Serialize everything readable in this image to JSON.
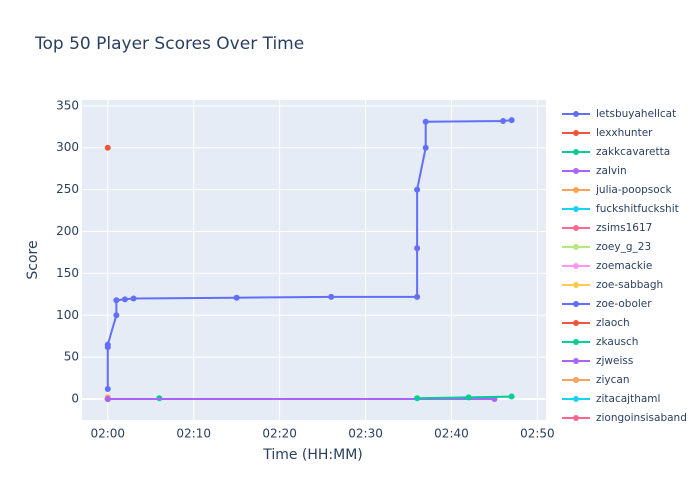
{
  "chart_data": {
    "type": "line",
    "title": "Top 50 Player Scores Over Time",
    "x_label": "Time (HH:MM)",
    "y_label": "Score",
    "xlim": [
      "01:57",
      "02:51"
    ],
    "ylim": [
      -25,
      357
    ],
    "xticks": [
      "02:00",
      "02:10",
      "02:20",
      "02:30",
      "02:40",
      "02:50"
    ],
    "yticks": [
      0,
      50,
      100,
      150,
      200,
      250,
      300,
      350
    ],
    "grid": true,
    "legend": "right",
    "series": [
      {
        "name": "letsbuyahellcat",
        "color": "#636efa",
        "x": [
          "02:00",
          "02:00",
          "02:00",
          "02:01",
          "02:01",
          "02:02",
          "02:03",
          "02:15",
          "02:26",
          "02:36",
          "02:36",
          "02:36",
          "02:37",
          "02:37",
          "02:46",
          "02:47"
        ],
        "values": [
          12,
          62,
          65,
          100,
          118,
          119,
          120,
          121,
          122,
          122,
          180,
          250,
          300,
          331,
          332,
          333
        ]
      },
      {
        "name": "lexxhunter",
        "color": "#EF553B",
        "x": [
          "02:00"
        ],
        "values": [
          300
        ]
      },
      {
        "name": "zakkcavaretta",
        "color": "#00cc96",
        "x": [
          "02:36",
          "02:42",
          "02:47"
        ],
        "values": [
          1,
          2,
          3
        ]
      },
      {
        "name": "zalvin",
        "color": "#ab63fa",
        "x": [
          "02:00",
          "02:45"
        ],
        "values": [
          0,
          0
        ]
      },
      {
        "name": "julia-poopsock",
        "color": "#FFA15A",
        "x": [
          "02:00"
        ],
        "values": [
          2
        ]
      },
      {
        "name": "fuckshitfuckshit",
        "color": "#19d3f3",
        "x": [
          "02:00"
        ],
        "values": [
          0
        ]
      },
      {
        "name": "zsims1617",
        "color": "#FF6692",
        "x": [
          "02:00"
        ],
        "values": [
          0
        ]
      },
      {
        "name": "zoey_g_23",
        "color": "#B6E880",
        "x": [
          "02:00"
        ],
        "values": [
          0
        ]
      },
      {
        "name": "zoemackie",
        "color": "#FF97FF",
        "x": [
          "02:00"
        ],
        "values": [
          0
        ]
      },
      {
        "name": "zoe-sabbagh",
        "color": "#FECB52",
        "x": [
          "02:00"
        ],
        "values": [
          0
        ]
      },
      {
        "name": "zoe-oboler",
        "color": "#636efa",
        "x": [
          "02:00"
        ],
        "values": [
          0
        ]
      },
      {
        "name": "zlaoch",
        "color": "#EF553B",
        "x": [
          "02:00"
        ],
        "values": [
          0
        ]
      },
      {
        "name": "zkausch",
        "color": "#00cc96",
        "x": [
          "02:06"
        ],
        "values": [
          1
        ]
      },
      {
        "name": "zjweiss",
        "color": "#ab63fa",
        "x": [
          "02:00"
        ],
        "values": [
          0
        ]
      },
      {
        "name": "ziycan",
        "color": "#FFA15A",
        "x": [
          "02:00"
        ],
        "values": [
          0
        ]
      },
      {
        "name": "zitacajthaml",
        "color": "#19d3f3",
        "x": [
          "02:00"
        ],
        "values": [
          0
        ]
      },
      {
        "name": "ziongoinsisaband",
        "color": "#FF6692",
        "x": [
          "02:00"
        ],
        "values": [
          0
        ]
      }
    ]
  }
}
